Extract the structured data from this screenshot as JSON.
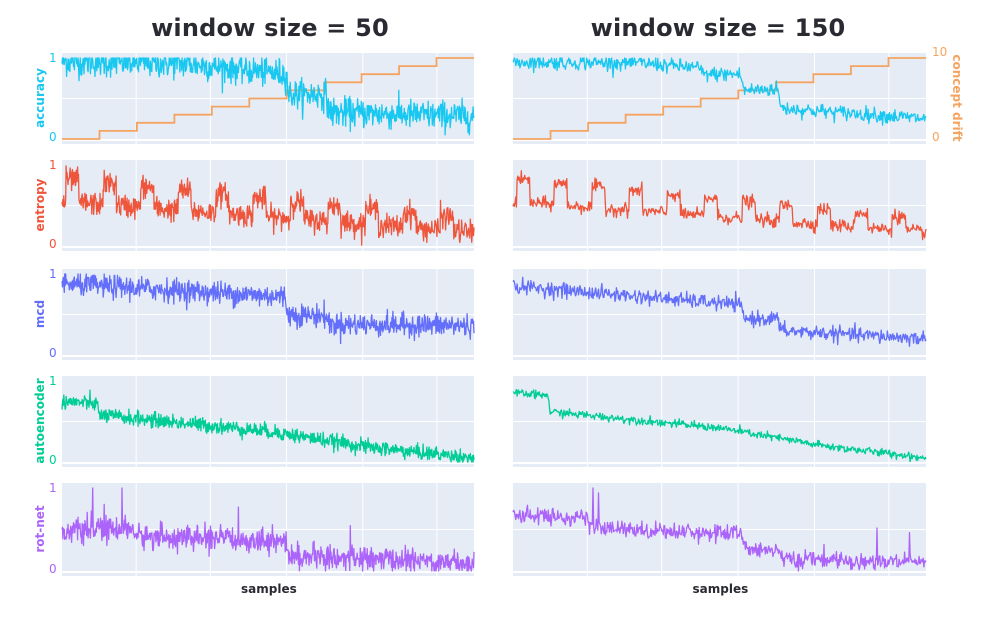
{
  "chart_data": {
    "type": "line",
    "columns": [
      {
        "title": "window size = 50",
        "window_size": 50,
        "xlabel": "samples"
      },
      {
        "title": "window size = 150",
        "window_size": 150,
        "xlabel": "samples"
      }
    ],
    "x_range": [
      0,
      1000
    ],
    "grid": true,
    "rows": [
      {
        "name": "accuracy",
        "ylabel": "accuracy",
        "color": "#19c8f0",
        "ylim": [
          0,
          1
        ],
        "yticks": [
          "0",
          "1"
        ],
        "trend": {
          "w50": [
            [
              0,
              0.96
            ],
            [
              0.3,
              0.93
            ],
            [
              0.44,
              0.86
            ],
            [
              0.545,
              0.8
            ],
            [
              0.55,
              0.55
            ],
            [
              0.64,
              0.55
            ],
            [
              0.65,
              0.33
            ],
            [
              1.0,
              0.28
            ]
          ],
          "w150": [
            [
              0,
              0.95
            ],
            [
              0.3,
              0.94
            ],
            [
              0.45,
              0.88
            ],
            [
              0.46,
              0.8
            ],
            [
              0.55,
              0.8
            ],
            [
              0.56,
              0.6
            ],
            [
              0.64,
              0.62
            ],
            [
              0.65,
              0.38
            ],
            [
              1.0,
              0.25
            ]
          ]
        },
        "noise": {
          "w50": 0.09,
          "w150": 0.045
        }
      },
      {
        "name": "entropy",
        "ylabel": "entropy",
        "color": "#ef553b",
        "ylim": [
          0,
          1
        ],
        "yticks": [
          "0",
          "1"
        ],
        "periodic": true,
        "noise": {
          "w50": 0.07,
          "w150": 0.04
        }
      },
      {
        "name": "mcd",
        "ylabel": "mcd",
        "color": "#636efa",
        "ylim": [
          0,
          1
        ],
        "yticks": [
          "0",
          "1"
        ],
        "trend": {
          "w50": [
            [
              0,
              0.88
            ],
            [
              0.54,
              0.72
            ],
            [
              0.55,
              0.5
            ],
            [
              0.64,
              0.48
            ],
            [
              0.65,
              0.38
            ],
            [
              1.0,
              0.36
            ]
          ],
          "w150": [
            [
              0,
              0.85
            ],
            [
              0.55,
              0.62
            ],
            [
              0.56,
              0.45
            ],
            [
              0.64,
              0.45
            ],
            [
              0.65,
              0.3
            ],
            [
              1.0,
              0.2
            ]
          ]
        },
        "noise": {
          "w50": 0.07,
          "w150": 0.045
        }
      },
      {
        "name": "autoencoder",
        "ylabel": "autoencoder",
        "color": "#00cc96",
        "ylim": [
          0,
          1
        ],
        "yticks": [
          "0",
          "1"
        ],
        "trend": {
          "w50": [
            [
              0,
              0.75
            ],
            [
              0.085,
              0.72
            ],
            [
              0.09,
              0.58
            ],
            [
              0.5,
              0.38
            ],
            [
              0.75,
              0.18
            ],
            [
              1.0,
              0.05
            ]
          ],
          "w150": [
            [
              0,
              0.85
            ],
            [
              0.085,
              0.82
            ],
            [
              0.09,
              0.62
            ],
            [
              0.5,
              0.42
            ],
            [
              0.75,
              0.2
            ],
            [
              1.0,
              0.05
            ]
          ]
        },
        "noise": {
          "w50": 0.045,
          "w150": 0.025
        }
      },
      {
        "name": "rot-net",
        "ylabel": "rot-net",
        "color": "#ab63fa",
        "ylim": [
          0,
          1
        ],
        "yticks": [
          "0",
          "1"
        ],
        "trend": {
          "w50": [
            [
              0,
              0.48
            ],
            [
              0.17,
              0.52
            ],
            [
              0.18,
              0.42
            ],
            [
              0.54,
              0.36
            ],
            [
              0.55,
              0.18
            ],
            [
              1.0,
              0.1
            ]
          ],
          "w150": [
            [
              0,
              0.68
            ],
            [
              0.18,
              0.64
            ],
            [
              0.19,
              0.52
            ],
            [
              0.55,
              0.45
            ],
            [
              0.56,
              0.28
            ],
            [
              0.64,
              0.26
            ],
            [
              0.65,
              0.14
            ],
            [
              1.0,
              0.1
            ]
          ]
        },
        "noise": {
          "w50": 0.07,
          "w150": 0.05
        },
        "spikes": true
      }
    ],
    "secondary_series": {
      "name": "concept drift",
      "ylabel": "concept drift",
      "color": "#f4a460",
      "ylim": [
        0,
        10
      ],
      "yticks": [
        "0",
        "10"
      ],
      "row": "accuracy",
      "steps": [
        0,
        1,
        2,
        3,
        4,
        5,
        6,
        7,
        8,
        9,
        10
      ]
    }
  }
}
